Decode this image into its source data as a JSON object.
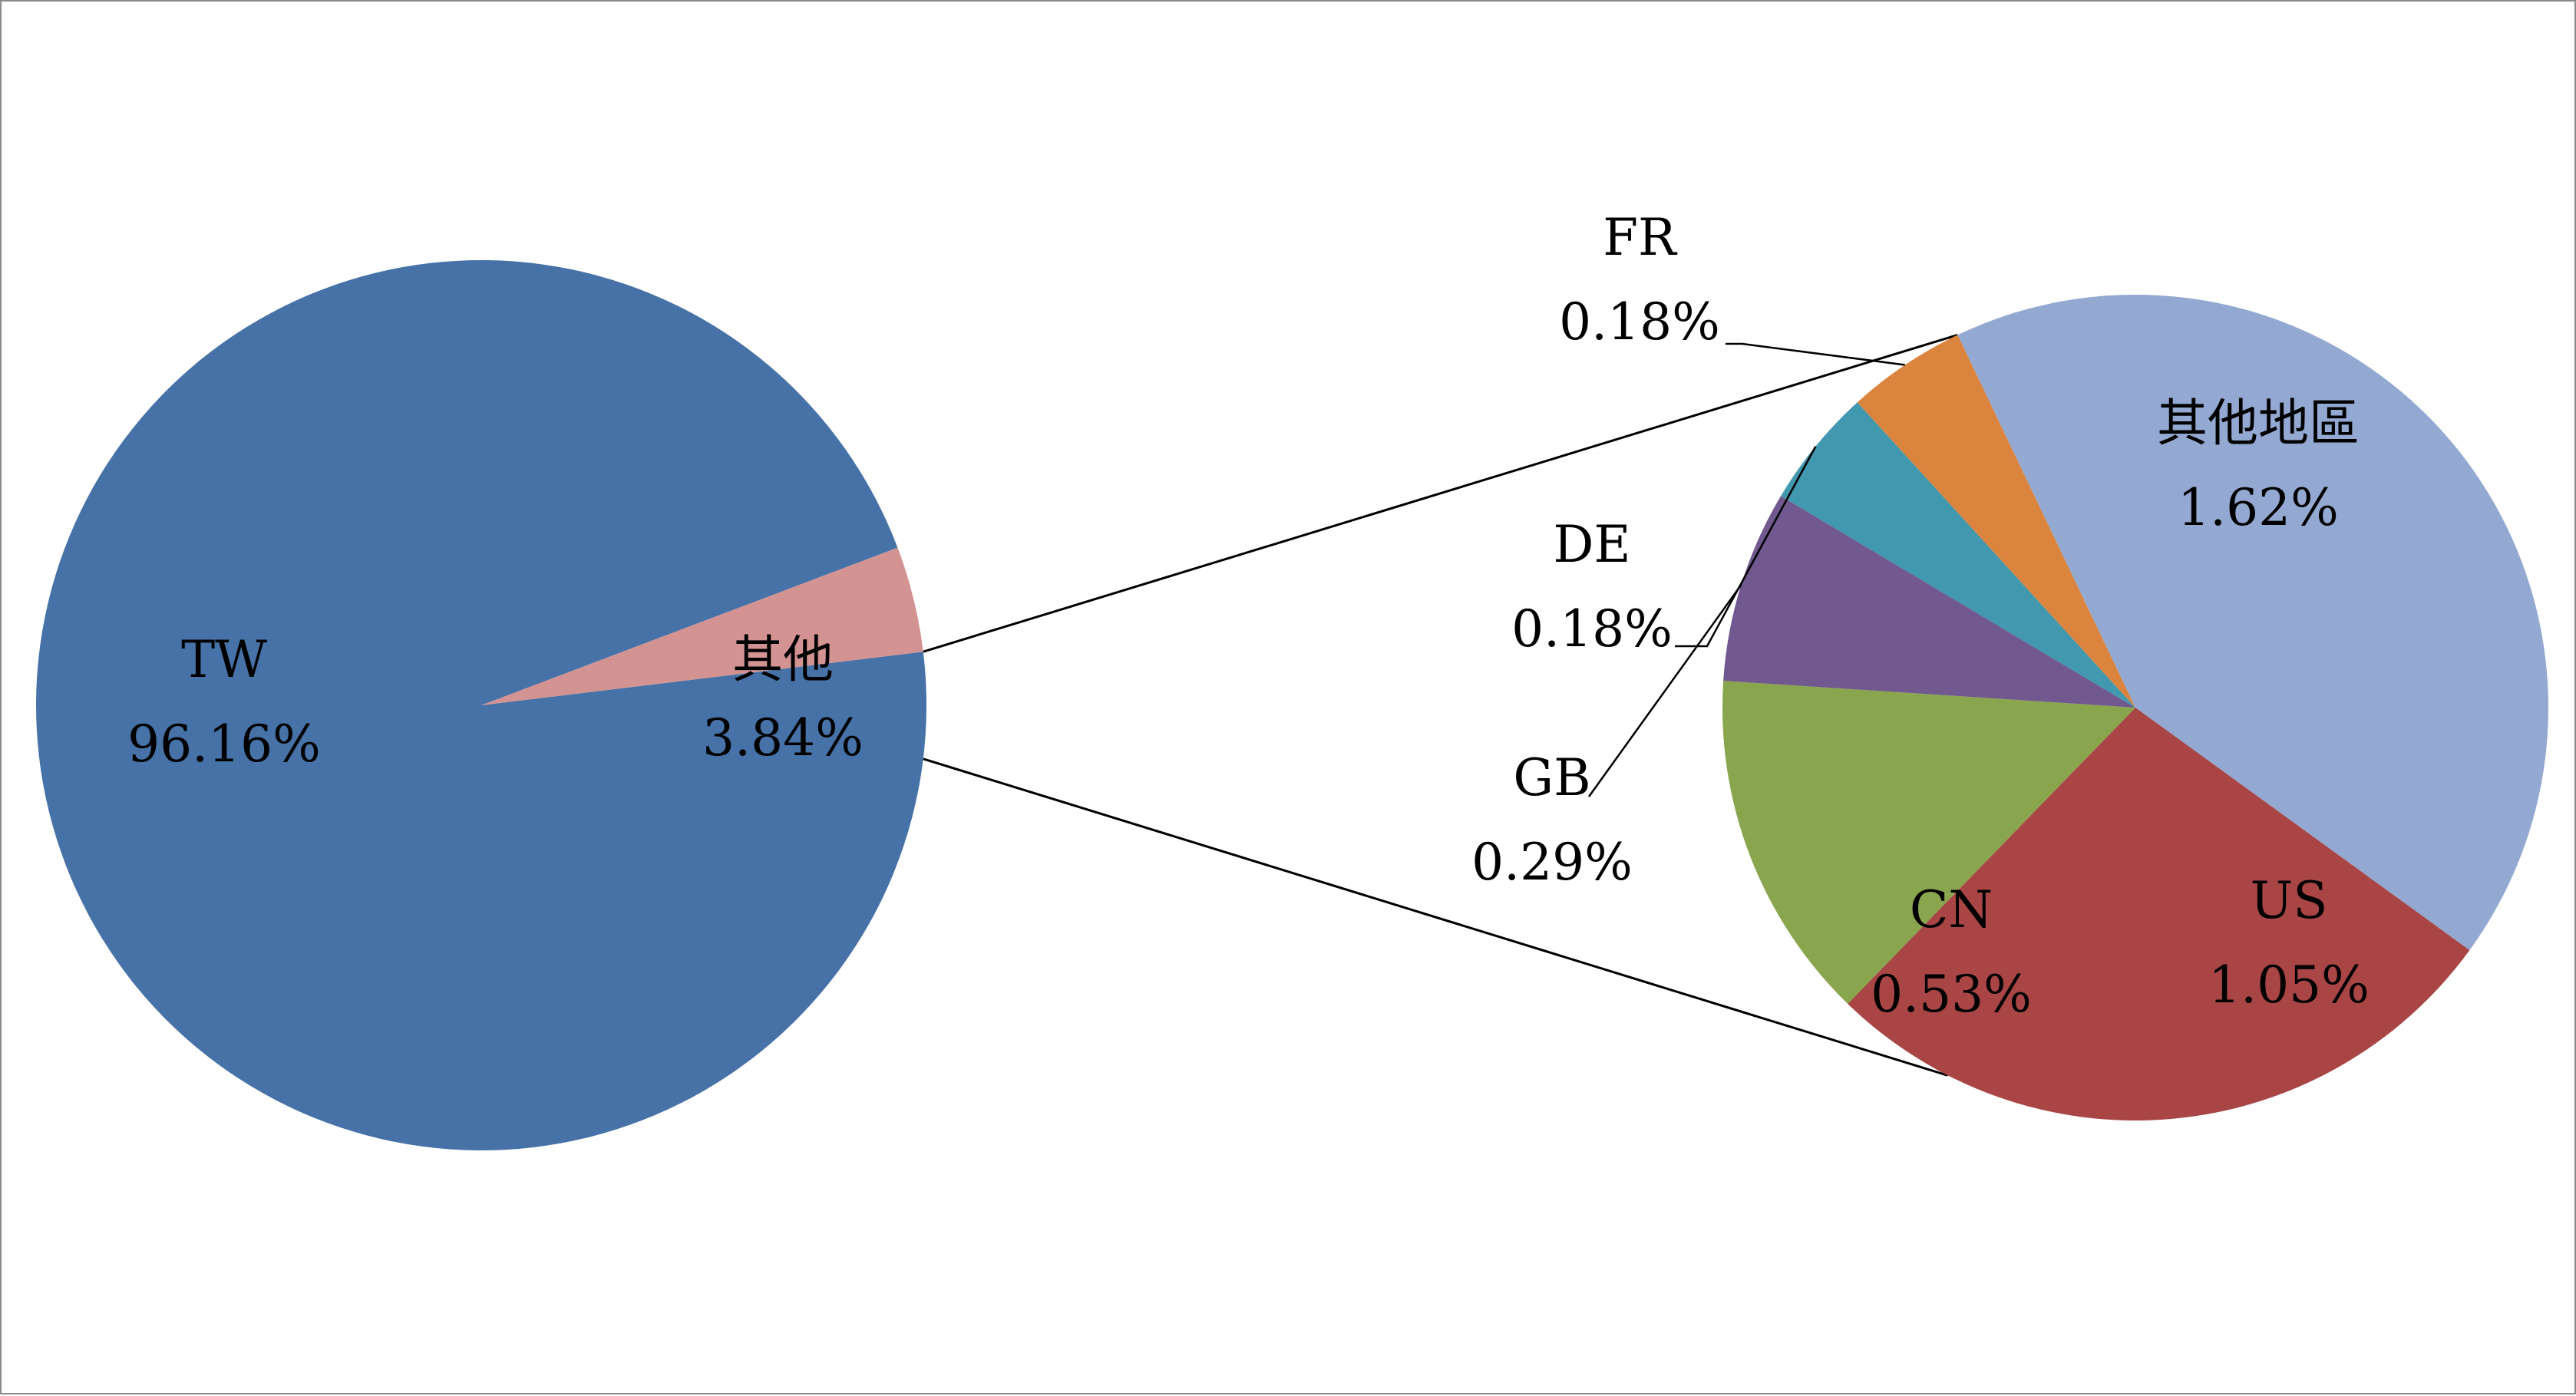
{
  "chart_data": {
    "type": "pie-of-pie",
    "main_pie": {
      "slices": [
        {
          "label": "TW",
          "value": 96.16,
          "display": "96.16%",
          "color": "#4672A7"
        },
        {
          "label": "其他",
          "value": 3.84,
          "display": "3.84%",
          "color": "#D39392"
        }
      ]
    },
    "secondary_pie": {
      "slices": [
        {
          "label": "其他地區",
          "value": 1.62,
          "display": "1.62%",
          "color": "#93A9D1"
        },
        {
          "label": "US",
          "value": 1.05,
          "display": "1.05%",
          "color": "#A94645"
        },
        {
          "label": "CN",
          "value": 0.53,
          "display": "0.53%",
          "color": "#89A54E"
        },
        {
          "label": "GB",
          "value": 0.29,
          "display": "0.29%",
          "color": "#71588F"
        },
        {
          "label": "DE",
          "value": 0.18,
          "display": "0.18%",
          "color": "#4198AF"
        },
        {
          "label": "FR",
          "value": 0.18,
          "display": "0.18%",
          "color": "#DB843D"
        }
      ]
    },
    "legend": "none",
    "data_labels": "category and percentage"
  }
}
